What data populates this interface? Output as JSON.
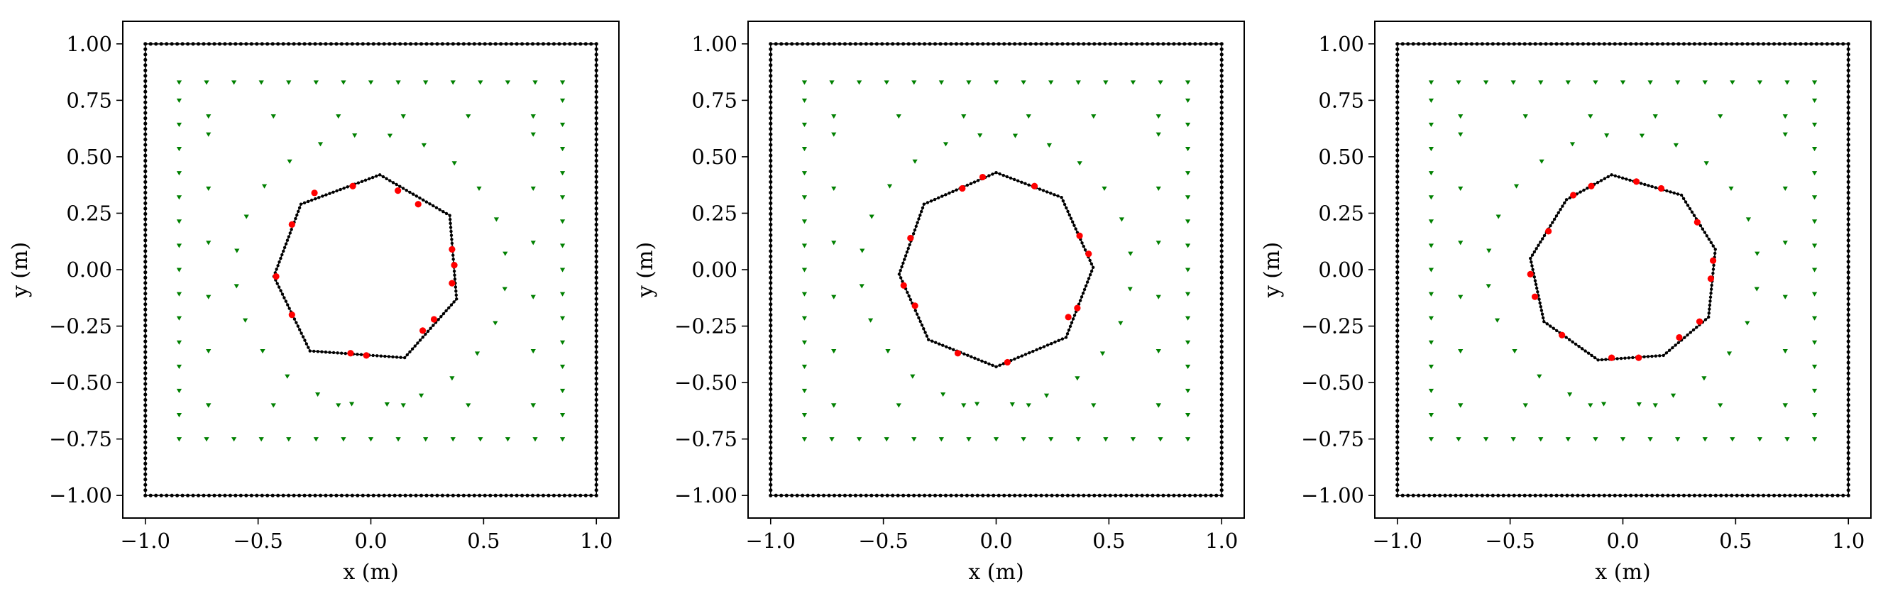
{
  "colors": {
    "boundary": "#000000",
    "sensors": "#008000",
    "inclusion_markers": "#ff0000",
    "inclusion_edge": "#000000",
    "frame": "#000000"
  },
  "chart_data": [
    {
      "type": "scatter",
      "title": "",
      "xlabel": "x (m)",
      "ylabel": "y (m)",
      "xlim": [
        -1.1,
        1.1
      ],
      "ylim": [
        -1.1,
        1.1
      ],
      "xticks": [
        -1.0,
        -0.5,
        0.0,
        0.5,
        1.0
      ],
      "yticks": [
        1.0,
        0.75,
        0.5,
        0.25,
        0.0,
        -0.25,
        -0.5,
        -0.75,
        -1.0
      ],
      "xtick_labels": [
        "−1.0",
        "−0.5",
        "0.0",
        "0.5",
        "1.0"
      ],
      "ytick_labels": [
        "1.00",
        "0.75",
        "0.50",
        "0.25",
        "0.00",
        "−0.25",
        "−0.50",
        "−0.75",
        "−1.00"
      ],
      "grid": false,
      "series": [
        {
          "role": "boundary",
          "marker": "dot",
          "values": [
            [
              -1.0,
              -1.0
            ],
            [
              1.0,
              -1.0
            ],
            [
              1.0,
              1.0
            ],
            [
              -1.0,
              1.0
            ]
          ]
        },
        {
          "role": "polygon",
          "marker": "dot",
          "values": [
            [
              0.04,
              0.42
            ],
            [
              0.35,
              0.24
            ],
            [
              0.38,
              -0.13
            ],
            [
              0.15,
              -0.39
            ],
            [
              -0.27,
              -0.36
            ],
            [
              -0.43,
              -0.03
            ],
            [
              -0.31,
              0.29
            ]
          ]
        },
        {
          "role": "polygon-markers",
          "marker": "circle",
          "values": [
            [
              -0.08,
              0.37
            ],
            [
              0.12,
              0.35
            ],
            [
              0.21,
              0.29
            ],
            [
              0.36,
              0.09
            ],
            [
              0.37,
              0.02
            ],
            [
              0.36,
              -0.06
            ],
            [
              0.28,
              -0.22
            ],
            [
              0.23,
              -0.27
            ],
            [
              -0.02,
              -0.38
            ],
            [
              -0.09,
              -0.37
            ],
            [
              -0.35,
              -0.2
            ],
            [
              -0.42,
              -0.03
            ],
            [
              -0.35,
              0.2
            ],
            [
              -0.25,
              0.34
            ]
          ]
        },
        {
          "role": "sensor-rings",
          "marker": "triangle_down",
          "rings": [
            {
              "center": [
                0.0,
                0.0
              ],
              "radius": 0.6,
              "count": 24
            },
            {
              "xmin": -0.72,
              "xmax": 0.72,
              "ymin": -0.6,
              "ymax": 0.6,
              "per_side": 5
            },
            {
              "xmin": -0.85,
              "xmax": 0.85,
              "ymin": -0.75,
              "ymax": 0.75,
              "per_side": 14
            }
          ]
        }
      ]
    },
    {
      "type": "scatter",
      "title": "",
      "xlabel": "x (m)",
      "ylabel": "y (m)",
      "xlim": [
        -1.1,
        1.1
      ],
      "ylim": [
        -1.1,
        1.1
      ],
      "xticks": [
        -1.0,
        -0.5,
        0.0,
        0.5,
        1.0
      ],
      "yticks": [
        1.0,
        0.75,
        0.5,
        0.25,
        0.0,
        -0.25,
        -0.5,
        -0.75,
        -1.0
      ],
      "xtick_labels": [
        "−1.0",
        "−0.5",
        "0.0",
        "0.5",
        "1.0"
      ],
      "ytick_labels": [
        "1.00",
        "0.75",
        "0.50",
        "0.25",
        "0.00",
        "−0.25",
        "−0.50",
        "−0.75",
        "−1.00"
      ],
      "grid": false,
      "series": [
        {
          "role": "boundary",
          "marker": "dot",
          "values": [
            [
              -1.0,
              -1.0
            ],
            [
              1.0,
              -1.0
            ],
            [
              1.0,
              1.0
            ],
            [
              -1.0,
              1.0
            ]
          ]
        },
        {
          "role": "polygon",
          "marker": "dot",
          "values": [
            [
              0.0,
              0.43
            ],
            [
              0.29,
              0.32
            ],
            [
              0.43,
              0.01
            ],
            [
              0.31,
              -0.3
            ],
            [
              0.0,
              -0.43
            ],
            [
              -0.3,
              -0.31
            ],
            [
              -0.43,
              -0.02
            ],
            [
              -0.32,
              0.29
            ]
          ]
        },
        {
          "role": "polygon-markers",
          "marker": "circle",
          "values": [
            [
              -0.15,
              0.36
            ],
            [
              -0.06,
              0.41
            ],
            [
              0.17,
              0.37
            ],
            [
              0.37,
              0.15
            ],
            [
              0.41,
              0.07
            ],
            [
              0.36,
              -0.17
            ],
            [
              0.05,
              -0.41
            ],
            [
              -0.17,
              -0.37
            ],
            [
              -0.36,
              -0.16
            ],
            [
              -0.41,
              -0.07
            ],
            [
              -0.38,
              0.14
            ],
            [
              0.32,
              -0.21
            ]
          ]
        },
        {
          "role": "sensor-rings",
          "marker": "triangle_down",
          "rings": [
            {
              "center": [
                0.0,
                0.0
              ],
              "radius": 0.6,
              "count": 24
            },
            {
              "xmin": -0.72,
              "xmax": 0.72,
              "ymin": -0.6,
              "ymax": 0.6,
              "per_side": 5
            },
            {
              "xmin": -0.85,
              "xmax": 0.85,
              "ymin": -0.75,
              "ymax": 0.75,
              "per_side": 14
            }
          ]
        }
      ]
    },
    {
      "type": "scatter",
      "title": "",
      "xlabel": "x (m)",
      "ylabel": "y (m)",
      "xlim": [
        -1.1,
        1.1
      ],
      "ylim": [
        -1.1,
        1.1
      ],
      "xticks": [
        -1.0,
        -0.5,
        0.0,
        0.5,
        1.0
      ],
      "yticks": [
        1.0,
        0.75,
        0.5,
        0.25,
        0.0,
        -0.25,
        -0.5,
        -0.75,
        -1.0
      ],
      "xtick_labels": [
        "−1.0",
        "−0.5",
        "0.0",
        "0.5",
        "1.0"
      ],
      "ytick_labels": [
        "1.00",
        "0.75",
        "0.50",
        "0.25",
        "0.00",
        "−0.25",
        "−0.50",
        "−0.75",
        "−1.00"
      ],
      "grid": false,
      "series": [
        {
          "role": "boundary",
          "marker": "dot",
          "values": [
            [
              -1.0,
              -1.0
            ],
            [
              1.0,
              -1.0
            ],
            [
              1.0,
              1.0
            ],
            [
              -1.0,
              1.0
            ]
          ]
        },
        {
          "role": "polygon",
          "marker": "dot",
          "values": [
            [
              -0.05,
              0.42
            ],
            [
              0.26,
              0.33
            ],
            [
              0.41,
              0.09
            ],
            [
              0.38,
              -0.21
            ],
            [
              0.18,
              -0.38
            ],
            [
              -0.11,
              -0.4
            ],
            [
              -0.35,
              -0.23
            ],
            [
              -0.41,
              0.05
            ],
            [
              -0.25,
              0.31
            ]
          ]
        },
        {
          "role": "polygon-markers",
          "marker": "circle",
          "values": [
            [
              -0.14,
              0.37
            ],
            [
              0.06,
              0.39
            ],
            [
              0.17,
              0.36
            ],
            [
              0.33,
              0.21
            ],
            [
              0.4,
              0.04
            ],
            [
              0.39,
              -0.04
            ],
            [
              0.34,
              -0.23
            ],
            [
              0.25,
              -0.3
            ],
            [
              0.07,
              -0.39
            ],
            [
              -0.05,
              -0.39
            ],
            [
              -0.27,
              -0.29
            ],
            [
              -0.39,
              -0.12
            ],
            [
              -0.41,
              -0.02
            ],
            [
              -0.33,
              0.17
            ],
            [
              -0.22,
              0.33
            ]
          ]
        },
        {
          "role": "sensor-rings",
          "marker": "triangle_down",
          "rings": [
            {
              "center": [
                0.0,
                0.0
              ],
              "radius": 0.6,
              "count": 24
            },
            {
              "xmin": -0.72,
              "xmax": 0.72,
              "ymin": -0.6,
              "ymax": 0.6,
              "per_side": 5
            },
            {
              "xmin": -0.85,
              "xmax": 0.85,
              "ymin": -0.75,
              "ymax": 0.75,
              "per_side": 14
            }
          ]
        }
      ]
    }
  ]
}
